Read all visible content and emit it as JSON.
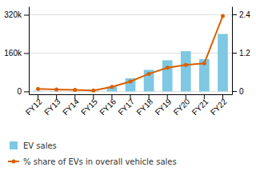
{
  "chart_data": {
    "type": "bar",
    "categories": [
      "FY12",
      "FY13",
      "FY14",
      "FY15",
      "FY16",
      "FY17",
      "FY18",
      "FY19",
      "FY20",
      "FY21",
      "FY22"
    ],
    "series": [
      {
        "name": "EV sales",
        "type": "bar",
        "color": "#7ec8e3",
        "values": [
          2000,
          1500,
          1000,
          2500,
          20000,
          55000,
          90000,
          130000,
          168000,
          135000,
          240000
        ]
      },
      {
        "name": "% share of EVs in overall vehicle sales",
        "type": "line",
        "axis": "y2",
        "color": "#d95f02",
        "marker": "circle",
        "values": [
          0.07,
          0.05,
          0.04,
          0.02,
          0.13,
          0.3,
          0.54,
          0.73,
          0.82,
          0.87,
          2.35
        ]
      }
    ],
    "ylim": [
      -12000,
      355000
    ],
    "yticks": [
      0,
      {
        "value": 160000,
        "label": "160k"
      },
      {
        "value": 320000,
        "label": "320k"
      }
    ],
    "y2lim": [
      -0.1,
      2.65
    ],
    "y2ticks": [
      0,
      1.2,
      2.4
    ],
    "grid": true,
    "legend": "lower-left"
  }
}
